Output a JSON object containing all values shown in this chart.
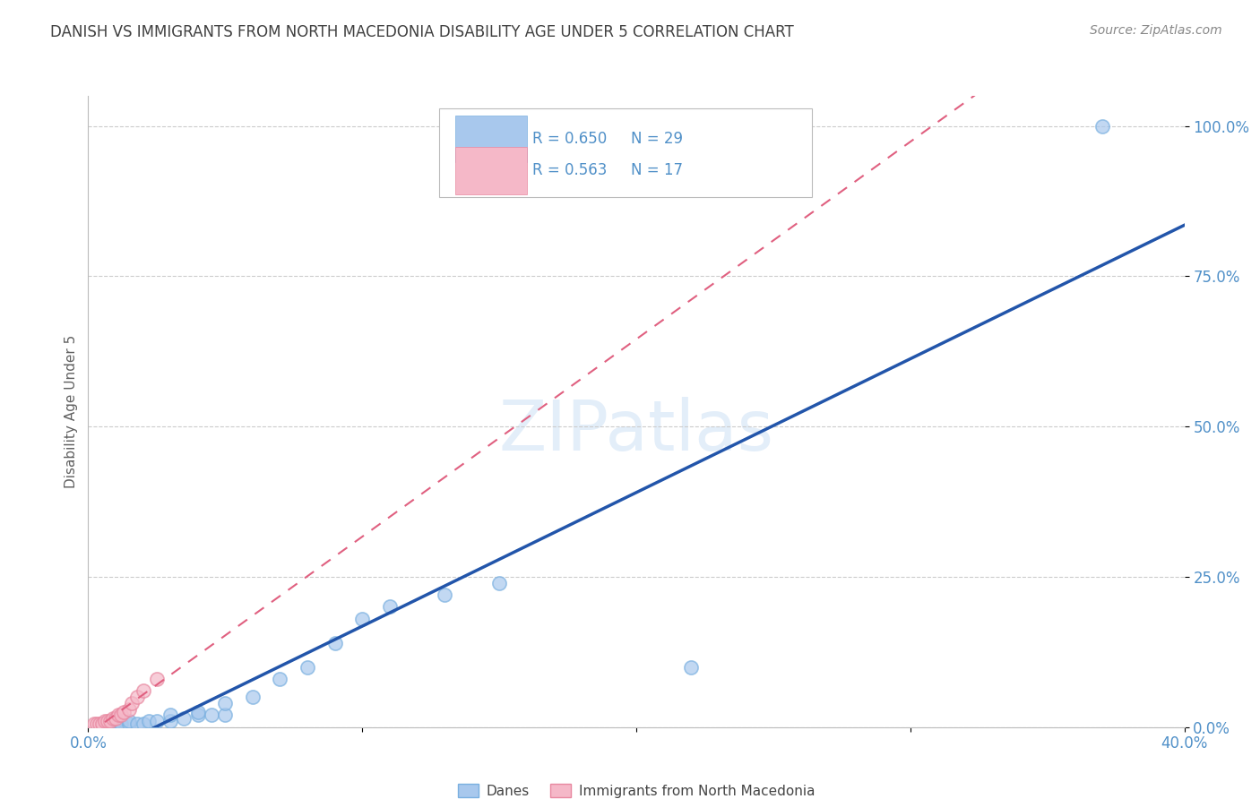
{
  "title": "DANISH VS IMMIGRANTS FROM NORTH MACEDONIA DISABILITY AGE UNDER 5 CORRELATION CHART",
  "source": "Source: ZipAtlas.com",
  "ylabel": "Disability Age Under 5",
  "xlim": [
    0.0,
    0.4
  ],
  "ylim": [
    0.0,
    1.05
  ],
  "yticks": [
    0.0,
    0.25,
    0.5,
    0.75,
    1.0
  ],
  "ytick_labels": [
    "0.0%",
    "25.0%",
    "50.0%",
    "75.0%",
    "100.0%"
  ],
  "xticks": [
    0.0,
    0.1,
    0.2,
    0.3,
    0.4
  ],
  "xtick_labels": [
    "0.0%",
    "",
    "",
    "",
    "40.0%"
  ],
  "danes_x": [
    0.005,
    0.008,
    0.01,
    0.01,
    0.012,
    0.015,
    0.015,
    0.018,
    0.02,
    0.022,
    0.025,
    0.03,
    0.03,
    0.035,
    0.04,
    0.04,
    0.045,
    0.05,
    0.05,
    0.06,
    0.07,
    0.08,
    0.09,
    0.1,
    0.11,
    0.13,
    0.15,
    0.22,
    0.37
  ],
  "danes_y": [
    0.005,
    0.005,
    0.005,
    0.01,
    0.005,
    0.005,
    0.01,
    0.005,
    0.005,
    0.01,
    0.01,
    0.01,
    0.02,
    0.015,
    0.02,
    0.025,
    0.02,
    0.02,
    0.04,
    0.05,
    0.08,
    0.1,
    0.14,
    0.18,
    0.2,
    0.22,
    0.24,
    0.1,
    1.0
  ],
  "immig_x": [
    0.002,
    0.003,
    0.004,
    0.005,
    0.006,
    0.007,
    0.008,
    0.009,
    0.01,
    0.011,
    0.012,
    0.013,
    0.015,
    0.016,
    0.018,
    0.02,
    0.025
  ],
  "immig_y": [
    0.005,
    0.005,
    0.005,
    0.005,
    0.01,
    0.01,
    0.01,
    0.015,
    0.015,
    0.02,
    0.02,
    0.025,
    0.03,
    0.04,
    0.05,
    0.06,
    0.08
  ],
  "danes_R": 0.65,
  "danes_N": 29,
  "immig_R": 0.563,
  "immig_N": 17,
  "danes_color": "#a8c8ed",
  "danes_edge_color": "#7ab0e0",
  "danes_line_color": "#2255aa",
  "immig_color": "#f5b8c8",
  "immig_edge_color": "#e888a0",
  "immig_line_color": "#e06080",
  "background_color": "#ffffff",
  "watermark": "ZIPatlas",
  "grid_color": "#cccccc",
  "title_color": "#404040",
  "axis_label_color": "#606060",
  "tick_label_color": "#5090c8",
  "source_color": "#888888"
}
